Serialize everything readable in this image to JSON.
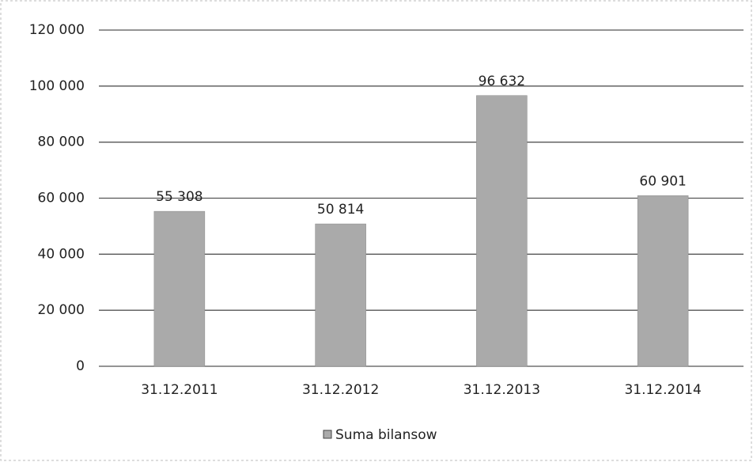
{
  "chart_data": {
    "type": "bar",
    "categories": [
      "31.12.2011",
      "31.12.2012",
      "31.12.2013",
      "31.12.2014"
    ],
    "series": [
      {
        "name": "Suma bilansow",
        "color": "#aaaaaa",
        "values": [
          55308,
          50814,
          96632,
          60901
        ],
        "value_labels": [
          "55 308",
          "50 814",
          "96 632",
          "60 901"
        ]
      }
    ],
    "ylim": [
      0,
      120000
    ],
    "yticks": [
      0,
      {
        "value": 20000,
        "label": "20 000"
      },
      {
        "value": 40000,
        "label": "40 000"
      },
      {
        "value": 60000,
        "label": "60 000"
      },
      {
        "value": 80000,
        "label": "80 000"
      },
      {
        "value": 100000,
        "label": "100 000"
      },
      {
        "value": 120000,
        "label": "120 000"
      }
    ],
    "grid": true,
    "legend": "bottom"
  }
}
